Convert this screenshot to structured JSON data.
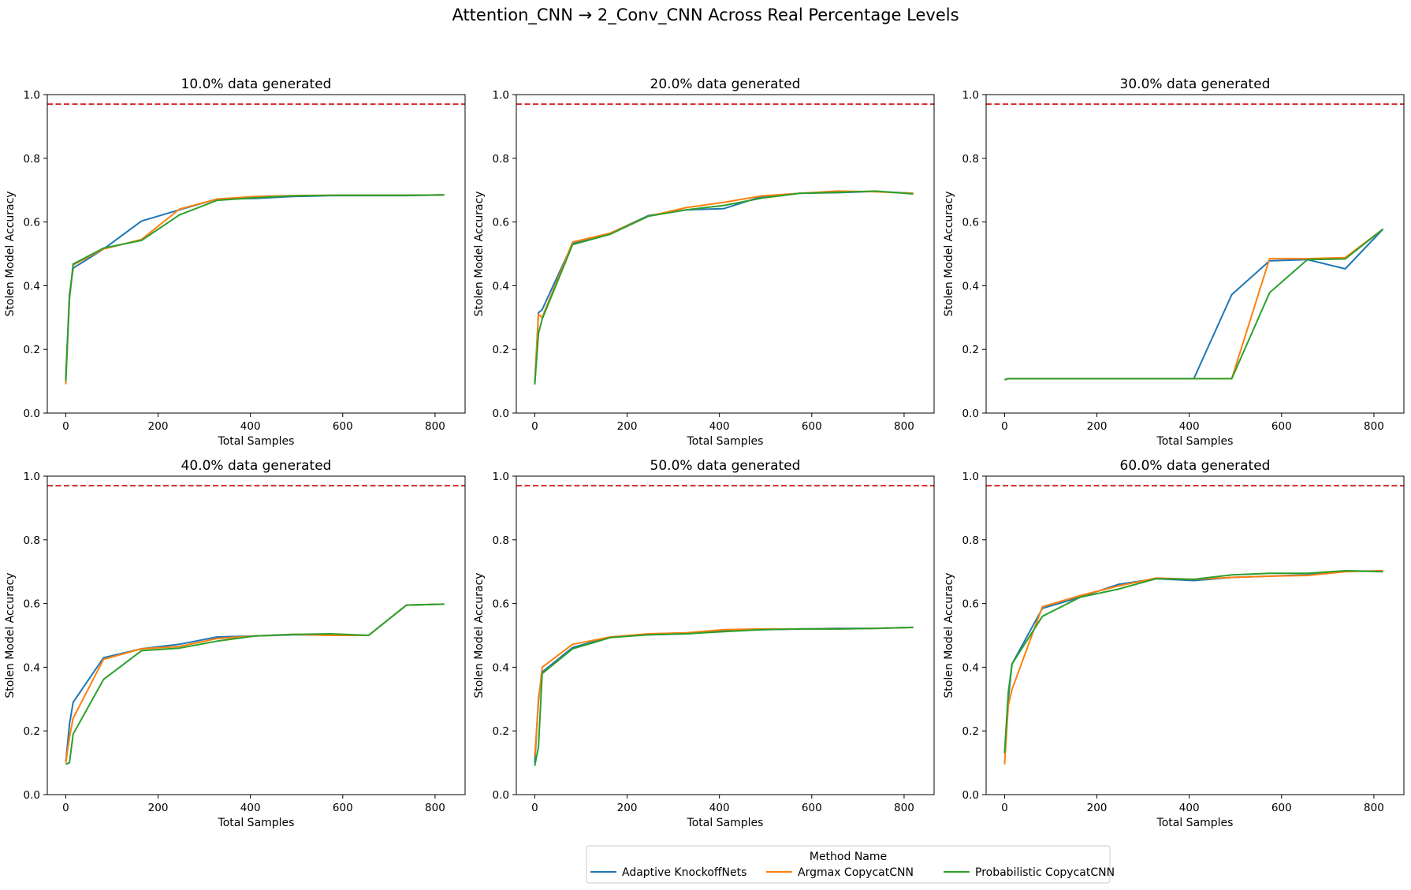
{
  "figure": {
    "title": "Attention_CNN → 2_Conv_CNN Across Real Percentage Levels"
  },
  "legend": {
    "title": "Method Name",
    "placement": "bottom-center",
    "entries": [
      {
        "name": "Adaptive KnockoffNets",
        "color": "#1f77b4"
      },
      {
        "name": "Argmax CopycatCNN",
        "color": "#ff7f0e"
      },
      {
        "name": "Probabilistic CopycatCNN",
        "color": "#2ca02c"
      }
    ]
  },
  "chart_data": [
    {
      "type": "line",
      "title": "10.0% data generated",
      "xlabel": "Total Samples",
      "ylabel": "Stolen Model Accuracy",
      "xlim": [
        -40,
        865
      ],
      "ylim": [
        0,
        1.0
      ],
      "xticks": [
        0,
        200,
        400,
        600,
        800
      ],
      "yticks": [
        0.0,
        0.2,
        0.4,
        0.6,
        0.8,
        1.0
      ],
      "reference_line": {
        "y": 0.97,
        "color": "#d62728",
        "style": "dashed"
      },
      "series": [
        {
          "name": "Adaptive KnockoffNets",
          "color": "#1f77b4",
          "x": [
            0,
            8,
            16,
            82,
            164,
            246,
            328,
            410,
            492,
            574,
            656,
            738,
            820
          ],
          "y": [
            0.11,
            0.37,
            0.455,
            0.515,
            0.603,
            0.638,
            0.672,
            0.674,
            0.68,
            0.683,
            0.683,
            0.683,
            0.685
          ]
        },
        {
          "name": "Argmax CopycatCNN",
          "color": "#ff7f0e",
          "x": [
            0,
            8,
            16,
            82,
            164,
            246,
            328,
            410,
            492,
            574,
            656,
            738,
            820
          ],
          "y": [
            0.09,
            0.36,
            0.465,
            0.515,
            0.545,
            0.64,
            0.672,
            0.68,
            0.683,
            0.684,
            0.684,
            0.684,
            0.685
          ]
        },
        {
          "name": "Probabilistic CopycatCNN",
          "color": "#2ca02c",
          "x": [
            0,
            8,
            16,
            82,
            164,
            246,
            328,
            410,
            492,
            574,
            656,
            738,
            820
          ],
          "y": [
            0.1,
            0.36,
            0.468,
            0.518,
            0.542,
            0.622,
            0.668,
            0.676,
            0.682,
            0.684,
            0.684,
            0.684,
            0.685
          ]
        }
      ]
    },
    {
      "type": "line",
      "title": "20.0% data generated",
      "xlabel": "Total Samples",
      "ylabel": "Stolen Model Accuracy",
      "xlim": [
        -40,
        865
      ],
      "ylim": [
        0,
        1.0
      ],
      "xticks": [
        0,
        200,
        400,
        600,
        800
      ],
      "yticks": [
        0.0,
        0.2,
        0.4,
        0.6,
        0.8,
        1.0
      ],
      "reference_line": {
        "y": 0.97,
        "color": "#d62728",
        "style": "dashed"
      },
      "series": [
        {
          "name": "Adaptive KnockoffNets",
          "color": "#1f77b4",
          "x": [
            0,
            8,
            16,
            82,
            164,
            246,
            328,
            410,
            492,
            574,
            656,
            738,
            820
          ],
          "y": [
            0.09,
            0.315,
            0.325,
            0.532,
            0.565,
            0.62,
            0.638,
            0.642,
            0.68,
            0.69,
            0.692,
            0.696,
            0.69
          ]
        },
        {
          "name": "Argmax CopycatCNN",
          "color": "#ff7f0e",
          "x": [
            0,
            8,
            16,
            82,
            164,
            246,
            328,
            410,
            492,
            574,
            656,
            738,
            820
          ],
          "y": [
            0.09,
            0.31,
            0.3,
            0.537,
            0.565,
            0.618,
            0.645,
            0.662,
            0.682,
            0.69,
            0.697,
            0.695,
            0.69
          ]
        },
        {
          "name": "Probabilistic CopycatCNN",
          "color": "#2ca02c",
          "x": [
            0,
            8,
            16,
            82,
            164,
            246,
            328,
            410,
            492,
            574,
            656,
            738,
            820
          ],
          "y": [
            0.09,
            0.25,
            0.295,
            0.529,
            0.562,
            0.618,
            0.638,
            0.652,
            0.675,
            0.69,
            0.693,
            0.697,
            0.688
          ]
        }
      ]
    },
    {
      "type": "line",
      "title": "30.0% data generated",
      "xlabel": "Total Samples",
      "ylabel": "Stolen Model Accuracy",
      "xlim": [
        -40,
        865
      ],
      "ylim": [
        0,
        1.0
      ],
      "xticks": [
        0,
        200,
        400,
        600,
        800
      ],
      "yticks": [
        0.0,
        0.2,
        0.4,
        0.6,
        0.8,
        1.0
      ],
      "reference_line": {
        "y": 0.97,
        "color": "#d62728",
        "style": "dashed"
      },
      "series": [
        {
          "name": "Adaptive KnockoffNets",
          "color": "#1f77b4",
          "x": [
            0,
            8,
            82,
            164,
            246,
            328,
            410,
            492,
            574,
            656,
            738,
            820
          ],
          "y": [
            0.105,
            0.108,
            0.108,
            0.108,
            0.108,
            0.108,
            0.108,
            0.372,
            0.478,
            0.482,
            0.453,
            0.578
          ]
        },
        {
          "name": "Argmax CopycatCNN",
          "color": "#ff7f0e",
          "x": [
            0,
            8,
            82,
            164,
            246,
            328,
            410,
            492,
            574,
            656,
            738,
            820
          ],
          "y": [
            0.105,
            0.108,
            0.108,
            0.108,
            0.108,
            0.108,
            0.108,
            0.108,
            0.485,
            0.485,
            0.488,
            0.578
          ]
        },
        {
          "name": "Probabilistic CopycatCNN",
          "color": "#2ca02c",
          "x": [
            0,
            8,
            82,
            164,
            246,
            328,
            410,
            492,
            574,
            656,
            738,
            820
          ],
          "y": [
            0.105,
            0.108,
            0.108,
            0.108,
            0.108,
            0.108,
            0.108,
            0.108,
            0.378,
            0.482,
            0.484,
            0.578
          ]
        }
      ]
    },
    {
      "type": "line",
      "title": "40.0% data generated",
      "xlabel": "Total Samples",
      "ylabel": "Stolen Model Accuracy",
      "xlim": [
        -40,
        865
      ],
      "ylim": [
        0,
        1.0
      ],
      "xticks": [
        0,
        200,
        400,
        600,
        800
      ],
      "yticks": [
        0.0,
        0.2,
        0.4,
        0.6,
        0.8,
        1.0
      ],
      "reference_line": {
        "y": 0.97,
        "color": "#d62728",
        "style": "dashed"
      },
      "series": [
        {
          "name": "Adaptive KnockoffNets",
          "color": "#1f77b4",
          "x": [
            0,
            8,
            16,
            82,
            164,
            246,
            328,
            410,
            492,
            574,
            656,
            738,
            820
          ],
          "y": [
            0.1,
            0.22,
            0.29,
            0.43,
            0.458,
            0.472,
            0.495,
            0.498,
            0.502,
            0.502,
            0.5,
            0.595,
            0.598
          ]
        },
        {
          "name": "Argmax CopycatCNN",
          "color": "#ff7f0e",
          "x": [
            0,
            8,
            16,
            82,
            164,
            246,
            328,
            410,
            492,
            574,
            656,
            738,
            820
          ],
          "y": [
            0.1,
            0.18,
            0.24,
            0.425,
            0.458,
            0.465,
            0.49,
            0.498,
            0.503,
            0.5,
            0.5,
            0.595,
            0.598
          ]
        },
        {
          "name": "Probabilistic CopycatCNN",
          "color": "#2ca02c",
          "x": [
            0,
            8,
            16,
            82,
            164,
            246,
            328,
            410,
            492,
            574,
            656,
            738,
            820
          ],
          "y": [
            0.095,
            0.1,
            0.19,
            0.362,
            0.452,
            0.46,
            0.482,
            0.498,
            0.503,
            0.505,
            0.5,
            0.595,
            0.598
          ]
        }
      ]
    },
    {
      "type": "line",
      "title": "50.0% data generated",
      "xlabel": "Total Samples",
      "ylabel": "Stolen Model Accuracy",
      "xlim": [
        -40,
        865
      ],
      "ylim": [
        0,
        1.0
      ],
      "xticks": [
        0,
        200,
        400,
        600,
        800
      ],
      "yticks": [
        0.0,
        0.2,
        0.4,
        0.6,
        0.8,
        1.0
      ],
      "reference_line": {
        "y": 0.97,
        "color": "#d62728",
        "style": "dashed"
      },
      "series": [
        {
          "name": "Adaptive KnockoffNets",
          "color": "#1f77b4",
          "x": [
            0,
            8,
            16,
            82,
            164,
            246,
            328,
            410,
            492,
            574,
            656,
            738,
            820
          ],
          "y": [
            0.1,
            0.3,
            0.385,
            0.462,
            0.495,
            0.502,
            0.505,
            0.515,
            0.518,
            0.52,
            0.522,
            0.522,
            0.525
          ]
        },
        {
          "name": "Argmax CopycatCNN",
          "color": "#ff7f0e",
          "x": [
            0,
            8,
            16,
            82,
            164,
            246,
            328,
            410,
            492,
            574,
            656,
            738,
            820
          ],
          "y": [
            0.12,
            0.29,
            0.4,
            0.472,
            0.495,
            0.505,
            0.508,
            0.518,
            0.52,
            0.52,
            0.52,
            0.522,
            0.525
          ]
        },
        {
          "name": "Probabilistic CopycatCNN",
          "color": "#2ca02c",
          "x": [
            0,
            8,
            16,
            82,
            164,
            246,
            328,
            410,
            492,
            574,
            656,
            738,
            820
          ],
          "y": [
            0.09,
            0.15,
            0.38,
            0.458,
            0.493,
            0.502,
            0.505,
            0.512,
            0.518,
            0.52,
            0.52,
            0.522,
            0.525
          ]
        }
      ]
    },
    {
      "type": "line",
      "title": "60.0% data generated",
      "xlabel": "Total Samples",
      "ylabel": "Stolen Model Accuracy",
      "xlim": [
        -40,
        865
      ],
      "ylim": [
        0,
        1.0
      ],
      "xticks": [
        0,
        200,
        400,
        600,
        800
      ],
      "yticks": [
        0.0,
        0.2,
        0.4,
        0.6,
        0.8,
        1.0
      ],
      "reference_line": {
        "y": 0.97,
        "color": "#d62728",
        "style": "dashed"
      },
      "series": [
        {
          "name": "Adaptive KnockoffNets",
          "color": "#1f77b4",
          "x": [
            0,
            8,
            16,
            82,
            164,
            246,
            328,
            410,
            492,
            574,
            656,
            738,
            820
          ],
          "y": [
            0.13,
            0.3,
            0.41,
            0.585,
            0.62,
            0.66,
            0.678,
            0.672,
            0.682,
            0.686,
            0.69,
            0.702,
            0.702
          ]
        },
        {
          "name": "Argmax CopycatCNN",
          "color": "#ff7f0e",
          "x": [
            0,
            8,
            16,
            82,
            164,
            246,
            328,
            410,
            492,
            574,
            656,
            738,
            820
          ],
          "y": [
            0.095,
            0.28,
            0.33,
            0.59,
            0.625,
            0.655,
            0.68,
            0.676,
            0.682,
            0.686,
            0.688,
            0.7,
            0.703
          ]
        },
        {
          "name": "Probabilistic CopycatCNN",
          "color": "#2ca02c",
          "x": [
            0,
            8,
            16,
            82,
            164,
            246,
            328,
            410,
            492,
            574,
            656,
            738,
            820
          ],
          "y": [
            0.13,
            0.32,
            0.41,
            0.56,
            0.62,
            0.645,
            0.678,
            0.676,
            0.69,
            0.695,
            0.695,
            0.703,
            0.7
          ]
        }
      ]
    }
  ]
}
